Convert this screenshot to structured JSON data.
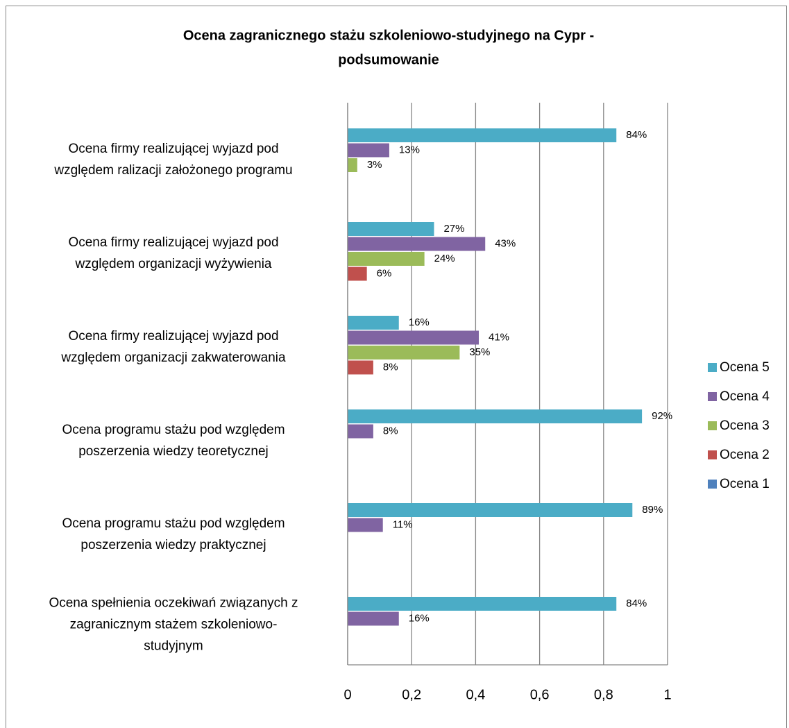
{
  "chart_data": {
    "type": "bar",
    "orientation": "horizontal",
    "title": [
      "Ocena zagranicznego stażu szkoleniowo-studyjnego na Cypr -",
      "podsumowanie"
    ],
    "categories": [
      [
        "Ocena firmy realizującej wyjazd pod",
        "względem ralizacji założonego programu"
      ],
      [
        "Ocena firmy realizującej wyjazd pod",
        "względem organizacji wyżywienia"
      ],
      [
        "Ocena firmy realizującej wyjazd pod",
        "względem organizacji zakwaterowania"
      ],
      [
        "Ocena programu stażu pod względem",
        "poszerzenia wiedzy teoretycznej"
      ],
      [
        "Ocena programu stażu pod względem",
        "poszerzenia wiedzy praktycznej"
      ],
      [
        "Ocena spełnienia oczekiwań związanych z",
        "zagranicznym stażem szkoleniowo-",
        "studyjnym"
      ]
    ],
    "series": [
      {
        "name": "Ocena 5",
        "color": "#4bacc6",
        "values": [
          0.84,
          0.27,
          0.16,
          0.92,
          0.89,
          0.84
        ],
        "value_labels": [
          "84%",
          "27%",
          "16%",
          "92%",
          "89%",
          "84%"
        ]
      },
      {
        "name": "Ocena 4",
        "color": "#8064a2",
        "values": [
          0.13,
          0.43,
          0.41,
          0.08,
          0.11,
          0.16
        ],
        "value_labels": [
          "13%",
          "43%",
          "41%",
          "8%",
          "11%",
          "16%"
        ]
      },
      {
        "name": "Ocena 3",
        "color": "#9bbb59",
        "values": [
          0.03,
          0.24,
          0.35,
          null,
          null,
          null
        ],
        "value_labels": [
          "3%",
          "24%",
          "35%",
          null,
          null,
          null
        ]
      },
      {
        "name": "Ocena 2",
        "color": "#c0504d",
        "values": [
          null,
          0.06,
          0.08,
          null,
          null,
          null
        ],
        "value_labels": [
          null,
          "6%",
          "8%",
          null,
          null,
          null
        ]
      },
      {
        "name": "Ocena 1",
        "color": "#4f81bd",
        "values": [
          null,
          null,
          null,
          null,
          null,
          null
        ],
        "value_labels": [
          null,
          null,
          null,
          null,
          null,
          null
        ]
      }
    ],
    "xlim": [
      0,
      1
    ],
    "xticks": [
      0,
      {
        "value": 0.2,
        "label": "0,2"
      },
      {
        "value": 0.4,
        "label": "0,4"
      },
      {
        "value": 0.6,
        "label": "0,6"
      },
      {
        "value": 0.8,
        "label": "0,8"
      },
      1
    ],
    "grid": true,
    "legend": "right"
  }
}
